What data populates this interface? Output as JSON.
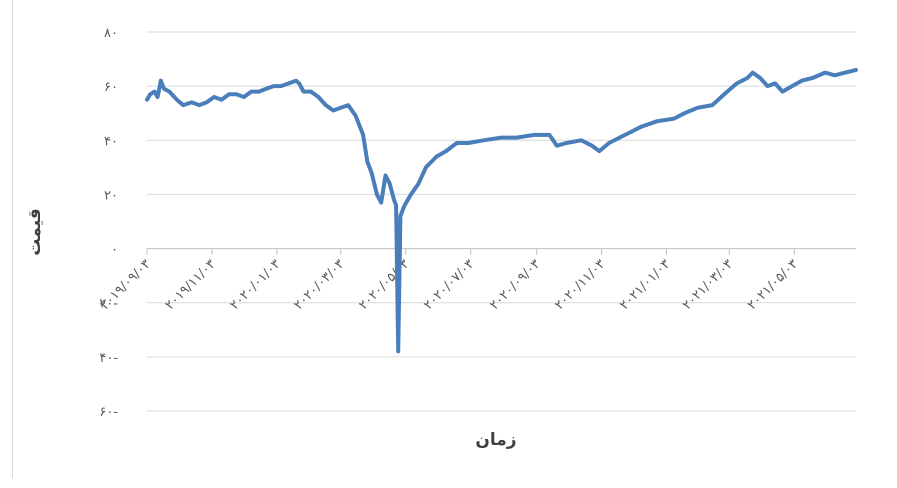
{
  "chart_data": {
    "type": "line",
    "xlabel": "زمان",
    "ylabel": "قیمت",
    "ylim": [
      -60,
      80
    ],
    "y_ticks": [
      {
        "value": 80,
        "label": "۸۰"
      },
      {
        "value": 60,
        "label": "۶۰"
      },
      {
        "value": 40,
        "label": "۴۰"
      },
      {
        "value": 20,
        "label": "۲۰"
      },
      {
        "value": 0,
        "label": "۰"
      },
      {
        "value": -20,
        "label": "۲۰-"
      },
      {
        "value": -40,
        "label": "۴۰-"
      },
      {
        "value": -60,
        "label": "۶۰-"
      }
    ],
    "x_range": [
      "2019-09-03",
      "2021-06-30"
    ],
    "x_ticks": [
      {
        "date": "2019-09-03",
        "label": "۲۰۱۹/۰۹/۰۳"
      },
      {
        "date": "2019-11-03",
        "label": "۲۰۱۹/۱۱/۰۳"
      },
      {
        "date": "2020-01-03",
        "label": "۲۰۲۰/۰۱/۰۳"
      },
      {
        "date": "2020-03-03",
        "label": "۲۰۲۰/۰۳/۰۳"
      },
      {
        "date": "2020-05-03",
        "label": "۲۰۲۰/۰۵/۰۳"
      },
      {
        "date": "2020-07-03",
        "label": "۲۰۲۰/۰۷/۰۳"
      },
      {
        "date": "2020-09-03",
        "label": "۲۰۲۰/۰۹/۰۳"
      },
      {
        "date": "2020-11-03",
        "label": "۲۰۲۰/۱۱/۰۳"
      },
      {
        "date": "2021-01-03",
        "label": "۲۰۲۱/۰۱/۰۳"
      },
      {
        "date": "2021-03-03",
        "label": "۲۰۲۱/۰۳/۰۳"
      },
      {
        "date": "2021-05-03",
        "label": "۲۰۲۱/۰۵/۰۳"
      }
    ],
    "grid": true,
    "series": [
      {
        "color": "#4a7ebb",
        "points": [
          [
            "2019-09-03",
            55
          ],
          [
            "2019-09-06",
            57
          ],
          [
            "2019-09-10",
            58
          ],
          [
            "2019-09-13",
            56
          ],
          [
            "2019-09-16",
            62
          ],
          [
            "2019-09-19",
            59
          ],
          [
            "2019-09-24",
            58
          ],
          [
            "2019-10-01",
            55
          ],
          [
            "2019-10-07",
            53
          ],
          [
            "2019-10-15",
            54
          ],
          [
            "2019-10-22",
            53
          ],
          [
            "2019-10-29",
            54
          ],
          [
            "2019-11-05",
            56
          ],
          [
            "2019-11-12",
            55
          ],
          [
            "2019-11-19",
            57
          ],
          [
            "2019-11-26",
            57
          ],
          [
            "2019-12-03",
            56
          ],
          [
            "2019-12-10",
            58
          ],
          [
            "2019-12-17",
            58
          ],
          [
            "2019-12-24",
            59
          ],
          [
            "2019-12-31",
            60
          ],
          [
            "2020-01-07",
            60
          ],
          [
            "2020-01-14",
            61
          ],
          [
            "2020-01-21",
            62
          ],
          [
            "2020-01-24",
            61
          ],
          [
            "2020-01-28",
            58
          ],
          [
            "2020-02-04",
            58
          ],
          [
            "2020-02-11",
            56
          ],
          [
            "2020-02-18",
            53
          ],
          [
            "2020-02-25",
            51
          ],
          [
            "2020-03-03",
            52
          ],
          [
            "2020-03-10",
            53
          ],
          [
            "2020-03-17",
            49
          ],
          [
            "2020-03-24",
            42
          ],
          [
            "2020-03-28",
            32
          ],
          [
            "2020-04-01",
            28
          ],
          [
            "2020-04-06",
            20
          ],
          [
            "2020-04-10",
            17
          ],
          [
            "2020-04-14",
            27
          ],
          [
            "2020-04-18",
            24
          ],
          [
            "2020-04-22",
            18
          ],
          [
            "2020-04-24",
            16
          ],
          [
            "2020-04-26",
            -38
          ],
          [
            "2020-04-28",
            12
          ],
          [
            "2020-05-02",
            16
          ],
          [
            "2020-05-08",
            20
          ],
          [
            "2020-05-15",
            24
          ],
          [
            "2020-05-22",
            30
          ],
          [
            "2020-06-01",
            34
          ],
          [
            "2020-06-10",
            36
          ],
          [
            "2020-06-20",
            39
          ],
          [
            "2020-07-01",
            39
          ],
          [
            "2020-07-15",
            40
          ],
          [
            "2020-08-01",
            41
          ],
          [
            "2020-08-15",
            41
          ],
          [
            "2020-09-01",
            42
          ],
          [
            "2020-09-15",
            42
          ],
          [
            "2020-09-22",
            38
          ],
          [
            "2020-10-01",
            39
          ],
          [
            "2020-10-15",
            40
          ],
          [
            "2020-10-25",
            38
          ],
          [
            "2020-11-01",
            36
          ],
          [
            "2020-11-10",
            39
          ],
          [
            "2020-11-25",
            42
          ],
          [
            "2020-12-10",
            45
          ],
          [
            "2020-12-25",
            47
          ],
          [
            "2021-01-10",
            48
          ],
          [
            "2021-01-20",
            50
          ],
          [
            "2021-02-01",
            52
          ],
          [
            "2021-02-15",
            53
          ],
          [
            "2021-03-01",
            58
          ],
          [
            "2021-03-10",
            61
          ],
          [
            "2021-03-20",
            63
          ],
          [
            "2021-03-25",
            65
          ],
          [
            "2021-04-01",
            63
          ],
          [
            "2021-04-08",
            60
          ],
          [
            "2021-04-15",
            61
          ],
          [
            "2021-04-22",
            58
          ],
          [
            "2021-05-01",
            60
          ],
          [
            "2021-05-10",
            62
          ],
          [
            "2021-05-20",
            63
          ],
          [
            "2021-06-01",
            65
          ],
          [
            "2021-06-10",
            64
          ],
          [
            "2021-06-20",
            65
          ],
          [
            "2021-06-30",
            66
          ]
        ]
      }
    ]
  }
}
